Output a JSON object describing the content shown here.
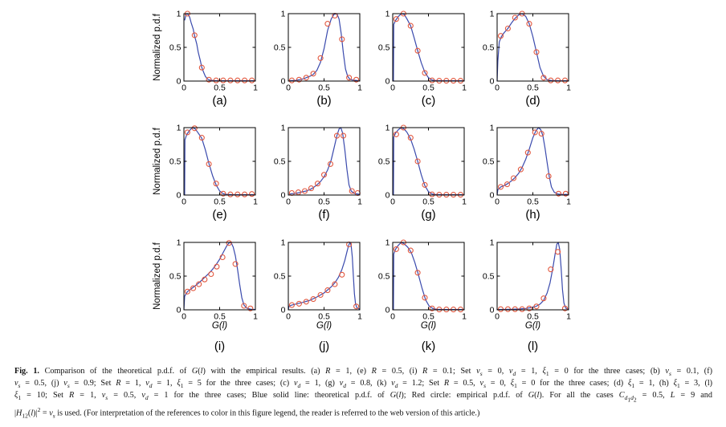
{
  "figure": {
    "ylabel": "Normalized p.d.f",
    "xlabel_html": "<i>G</i>(<i>l</i>)",
    "colors": {
      "line": "#3a4aad",
      "marker": "#e2583f",
      "axis": "#000000"
    },
    "axis": {
      "xlim": [
        0,
        1
      ],
      "ylim": [
        0,
        1
      ],
      "xticks": [
        0,
        0.5,
        1
      ],
      "yticks": [
        0,
        0.5,
        1
      ],
      "xtick_labels": [
        "0",
        "0.5",
        "1"
      ],
      "ytick_labels": [
        "0",
        "0.5",
        "1"
      ]
    },
    "legend": {
      "line": "theoretical p.d.f. of G(l)",
      "marker": "empirical p.d.f. of G(l)"
    }
  },
  "chart_data": [
    {
      "id": "a",
      "label": "(a)",
      "type": "line+scatter",
      "line": {
        "x": [
          0.01,
          0.03,
          0.05,
          0.08,
          0.1,
          0.13,
          0.15,
          0.18,
          0.2,
          0.23,
          0.25,
          0.28,
          0.3,
          0.33,
          0.36,
          0.4,
          0.45,
          0.5,
          0.6,
          0.7,
          0.8,
          0.9,
          1.0
        ],
        "y": [
          0.9,
          0.99,
          1.0,
          0.95,
          0.87,
          0.77,
          0.67,
          0.55,
          0.43,
          0.3,
          0.2,
          0.12,
          0.07,
          0.03,
          0.015,
          0.01,
          0.005,
          0.005,
          0.005,
          0.005,
          0.005,
          0.005,
          0.005
        ]
      },
      "markers": {
        "x": [
          0.05,
          0.15,
          0.25,
          0.35,
          0.45,
          0.55,
          0.65,
          0.75,
          0.85,
          0.95
        ],
        "y": [
          1.0,
          0.68,
          0.2,
          0.02,
          0.01,
          0.01,
          0.01,
          0.01,
          0.01,
          0.01
        ]
      }
    },
    {
      "id": "b",
      "label": "(b)",
      "type": "line+scatter",
      "line": {
        "x": [
          0.01,
          0.05,
          0.1,
          0.15,
          0.2,
          0.25,
          0.3,
          0.35,
          0.4,
          0.45,
          0.5,
          0.55,
          0.6,
          0.64,
          0.68,
          0.71,
          0.74,
          0.77,
          0.8,
          0.83,
          0.86,
          0.9,
          0.95,
          1.0
        ],
        "y": [
          0.005,
          0.007,
          0.01,
          0.02,
          0.03,
          0.05,
          0.07,
          0.1,
          0.16,
          0.28,
          0.48,
          0.75,
          0.92,
          0.99,
          1.0,
          0.92,
          0.7,
          0.42,
          0.18,
          0.07,
          0.03,
          0.015,
          0.01,
          0.005
        ]
      },
      "markers": {
        "x": [
          0.05,
          0.15,
          0.25,
          0.35,
          0.45,
          0.55,
          0.65,
          0.75,
          0.85,
          0.95
        ],
        "y": [
          0.01,
          0.02,
          0.05,
          0.11,
          0.34,
          0.85,
          0.97,
          0.62,
          0.05,
          0.02
        ]
      }
    },
    {
      "id": "c",
      "label": "(c)",
      "type": "line+scatter",
      "line": {
        "x": [
          0.01,
          0.015,
          0.04,
          0.08,
          0.12,
          0.16,
          0.2,
          0.25,
          0.3,
          0.35,
          0.4,
          0.45,
          0.5,
          0.55,
          0.6,
          0.7,
          0.85,
          1.0
        ],
        "y": [
          0.0,
          0.84,
          0.9,
          0.96,
          1.0,
          0.99,
          0.92,
          0.82,
          0.64,
          0.45,
          0.27,
          0.13,
          0.05,
          0.015,
          0.007,
          0.005,
          0.005,
          0.005
        ]
      },
      "markers": {
        "x": [
          0.05,
          0.15,
          0.25,
          0.35,
          0.45,
          0.55,
          0.65,
          0.75,
          0.85,
          0.95
        ],
        "y": [
          0.92,
          1.0,
          0.82,
          0.45,
          0.12,
          0.01,
          0.005,
          0.005,
          0.005,
          0.005
        ]
      }
    },
    {
      "id": "d",
      "label": "(d)",
      "type": "line+scatter",
      "line": {
        "x": [
          0.0,
          0.01,
          0.03,
          0.06,
          0.1,
          0.15,
          0.2,
          0.25,
          0.3,
          0.35,
          0.4,
          0.45,
          0.5,
          0.55,
          0.6,
          0.65,
          0.7,
          0.75,
          0.85,
          1.0
        ],
        "y": [
          0.0,
          0.3,
          0.58,
          0.66,
          0.72,
          0.78,
          0.86,
          0.93,
          0.98,
          1.0,
          0.96,
          0.85,
          0.66,
          0.43,
          0.2,
          0.07,
          0.02,
          0.01,
          0.005,
          0.005
        ]
      },
      "markers": {
        "x": [
          0.05,
          0.15,
          0.25,
          0.35,
          0.45,
          0.55,
          0.65,
          0.75,
          0.85,
          0.95
        ],
        "y": [
          0.67,
          0.78,
          0.94,
          1.0,
          0.85,
          0.43,
          0.05,
          0.01,
          0.01,
          0.01
        ]
      }
    },
    {
      "id": "e",
      "label": "(e)",
      "type": "line+scatter",
      "line": {
        "x": [
          0.01,
          0.015,
          0.04,
          0.08,
          0.12,
          0.16,
          0.2,
          0.25,
          0.3,
          0.35,
          0.4,
          0.45,
          0.5,
          0.55,
          0.6,
          0.7,
          0.85,
          1.0
        ],
        "y": [
          0.0,
          0.82,
          0.9,
          0.96,
          1.0,
          0.98,
          0.92,
          0.84,
          0.67,
          0.47,
          0.29,
          0.15,
          0.06,
          0.02,
          0.01,
          0.005,
          0.005,
          0.005
        ]
      },
      "markers": {
        "x": [
          0.05,
          0.15,
          0.25,
          0.35,
          0.45,
          0.55,
          0.65,
          0.75,
          0.85,
          0.95
        ],
        "y": [
          0.93,
          0.99,
          0.85,
          0.46,
          0.17,
          0.02,
          0.01,
          0.01,
          0.01,
          0.015
        ]
      }
    },
    {
      "id": "f",
      "label": "(f)",
      "type": "line+scatter",
      "line": {
        "x": [
          0.01,
          0.05,
          0.1,
          0.15,
          0.2,
          0.25,
          0.3,
          0.35,
          0.4,
          0.45,
          0.5,
          0.55,
          0.6,
          0.64,
          0.68,
          0.71,
          0.735,
          0.76,
          0.79,
          0.82,
          0.85,
          0.88,
          0.92,
          1.0
        ],
        "y": [
          0.015,
          0.02,
          0.025,
          0.035,
          0.05,
          0.06,
          0.08,
          0.11,
          0.15,
          0.2,
          0.27,
          0.37,
          0.52,
          0.7,
          0.88,
          0.98,
          1.0,
          0.92,
          0.68,
          0.38,
          0.15,
          0.06,
          0.025,
          0.01
        ]
      },
      "markers": {
        "x": [
          0.05,
          0.14,
          0.23,
          0.32,
          0.41,
          0.5,
          0.59,
          0.68,
          0.77,
          0.89,
          0.97
        ],
        "y": [
          0.03,
          0.04,
          0.06,
          0.1,
          0.17,
          0.3,
          0.46,
          0.88,
          0.88,
          0.06,
          0.03
        ]
      }
    },
    {
      "id": "g",
      "label": "(g)",
      "type": "line+scatter",
      "line": {
        "x": [
          0.01,
          0.015,
          0.04,
          0.08,
          0.12,
          0.16,
          0.2,
          0.25,
          0.3,
          0.35,
          0.4,
          0.45,
          0.5,
          0.55,
          0.6,
          0.7,
          0.85,
          1.0
        ],
        "y": [
          0.0,
          0.86,
          0.92,
          0.97,
          1.0,
          0.98,
          0.93,
          0.83,
          0.68,
          0.5,
          0.3,
          0.14,
          0.05,
          0.015,
          0.007,
          0.005,
          0.005,
          0.005
        ]
      },
      "markers": {
        "x": [
          0.05,
          0.15,
          0.25,
          0.35,
          0.45,
          0.55,
          0.65,
          0.75,
          0.85,
          0.95
        ],
        "y": [
          0.9,
          1.0,
          0.85,
          0.5,
          0.15,
          0.01,
          0.005,
          0.005,
          0.005,
          0.005
        ]
      }
    },
    {
      "id": "h",
      "label": "(h)",
      "type": "line+scatter",
      "line": {
        "x": [
          0.0,
          0.01,
          0.05,
          0.1,
          0.15,
          0.2,
          0.25,
          0.3,
          0.35,
          0.4,
          0.45,
          0.5,
          0.54,
          0.58,
          0.61,
          0.64,
          0.67,
          0.7,
          0.73,
          0.76,
          0.8,
          0.85,
          0.9,
          1.0
        ],
        "y": [
          0.0,
          0.08,
          0.12,
          0.14,
          0.17,
          0.21,
          0.26,
          0.32,
          0.41,
          0.53,
          0.68,
          0.85,
          0.95,
          1.0,
          0.97,
          0.88,
          0.7,
          0.48,
          0.27,
          0.12,
          0.04,
          0.015,
          0.01,
          0.01
        ]
      },
      "markers": {
        "x": [
          0.05,
          0.14,
          0.23,
          0.33,
          0.43,
          0.53,
          0.62,
          0.72,
          0.86,
          0.96
        ],
        "y": [
          0.12,
          0.16,
          0.25,
          0.38,
          0.63,
          0.93,
          0.91,
          0.28,
          0.02,
          0.02
        ]
      }
    },
    {
      "id": "i",
      "label": "(i)",
      "type": "line+scatter",
      "line": {
        "x": [
          0.0,
          0.01,
          0.05,
          0.1,
          0.15,
          0.2,
          0.25,
          0.3,
          0.35,
          0.4,
          0.45,
          0.5,
          0.55,
          0.6,
          0.63,
          0.66,
          0.69,
          0.72,
          0.75,
          0.78,
          0.81,
          0.84,
          0.88,
          0.93,
          1.0
        ],
        "y": [
          0.0,
          0.2,
          0.27,
          0.31,
          0.35,
          0.39,
          0.44,
          0.49,
          0.54,
          0.6,
          0.67,
          0.75,
          0.85,
          0.95,
          0.99,
          1.0,
          0.93,
          0.8,
          0.6,
          0.38,
          0.18,
          0.07,
          0.025,
          0.01,
          0.005
        ]
      },
      "markers": {
        "x": [
          0.05,
          0.13,
          0.21,
          0.29,
          0.38,
          0.46,
          0.54,
          0.63,
          0.72,
          0.84,
          0.93
        ],
        "y": [
          0.27,
          0.32,
          0.38,
          0.45,
          0.53,
          0.64,
          0.78,
          0.99,
          0.68,
          0.06,
          0.02
        ]
      }
    },
    {
      "id": "j",
      "label": "(j)",
      "type": "line+scatter",
      "line": {
        "x": [
          0.0,
          0.01,
          0.05,
          0.1,
          0.2,
          0.3,
          0.4,
          0.5,
          0.6,
          0.65,
          0.7,
          0.75,
          0.79,
          0.82,
          0.845,
          0.865,
          0.88,
          0.895,
          0.91,
          0.925,
          0.94,
          0.96,
          1.0
        ],
        "y": [
          0.0,
          0.055,
          0.07,
          0.085,
          0.11,
          0.14,
          0.19,
          0.25,
          0.34,
          0.4,
          0.48,
          0.6,
          0.73,
          0.86,
          0.96,
          1.0,
          0.95,
          0.78,
          0.5,
          0.24,
          0.09,
          0.03,
          0.01
        ]
      },
      "markers": {
        "x": [
          0.05,
          0.15,
          0.25,
          0.35,
          0.45,
          0.55,
          0.65,
          0.75,
          0.85,
          0.95
        ],
        "y": [
          0.07,
          0.09,
          0.12,
          0.16,
          0.22,
          0.29,
          0.38,
          0.52,
          0.97,
          0.05
        ]
      }
    },
    {
      "id": "k",
      "label": "(k)",
      "type": "line+scatter",
      "line": {
        "x": [
          0.01,
          0.015,
          0.04,
          0.08,
          0.12,
          0.16,
          0.21,
          0.26,
          0.31,
          0.36,
          0.41,
          0.46,
          0.51,
          0.56,
          0.61,
          0.7,
          0.85,
          1.0
        ],
        "y": [
          0.0,
          0.83,
          0.9,
          0.96,
          1.0,
          0.98,
          0.93,
          0.85,
          0.7,
          0.52,
          0.32,
          0.15,
          0.055,
          0.02,
          0.008,
          0.005,
          0.005,
          0.005
        ]
      },
      "markers": {
        "x": [
          0.05,
          0.15,
          0.25,
          0.35,
          0.45,
          0.55,
          0.65,
          0.75,
          0.85,
          0.95
        ],
        "y": [
          0.9,
          1.0,
          0.88,
          0.55,
          0.18,
          0.02,
          0.005,
          0.005,
          0.005,
          0.005
        ]
      }
    },
    {
      "id": "l",
      "label": "(l)",
      "type": "line+scatter",
      "line": {
        "x": [
          0.0,
          0.1,
          0.2,
          0.3,
          0.4,
          0.48,
          0.55,
          0.6,
          0.65,
          0.7,
          0.74,
          0.78,
          0.81,
          0.835,
          0.855,
          0.875,
          0.895,
          0.915,
          0.935,
          0.96,
          1.0
        ],
        "y": [
          0.005,
          0.006,
          0.008,
          0.012,
          0.02,
          0.035,
          0.055,
          0.085,
          0.14,
          0.25,
          0.4,
          0.62,
          0.82,
          0.97,
          1.0,
          0.9,
          0.62,
          0.3,
          0.1,
          0.025,
          0.01
        ]
      },
      "markers": {
        "x": [
          0.05,
          0.15,
          0.25,
          0.35,
          0.45,
          0.55,
          0.65,
          0.75,
          0.85,
          0.95
        ],
        "y": [
          0.01,
          0.01,
          0.01,
          0.01,
          0.02,
          0.05,
          0.17,
          0.6,
          0.86,
          0.02
        ]
      }
    }
  ],
  "caption": {
    "lines_html": [
      "<b>Fig. 1.</b> Comparison of the theoretical p.d.f. of <i>G</i>(<i>l</i>) with the empirical results. (a) <i>R</i> = 1, (e) <i>R</i> = 0.5, (i) <i>R</i> = 0.1; Set <i>v</i><sub><i>s</i></sub> = 0, <i>v</i><sub><i>d</i></sub> = 1, <i>&#958;</i><sub>1</sub> = 0 for the three cases; (b) <i>v</i><sub><i>s</i></sub> = 0.1, (f)",
      "<i>v</i><sub><i>s</i></sub> = 0.5, (j) <i>v</i><sub><i>s</i></sub> = 0.9; Set <i>R</i> = 1, <i>v</i><sub><i>d</i></sub> = 1, <i>&#958;</i><sub>1</sub> = 5 for the three cases; (c) <i>v</i><sub><i>d</i></sub> = 1, (g) <i>v</i><sub><i>d</i></sub> = 0.8, (k) <i>v</i><sub><i>d</i></sub> = 1.2; Set <i>R</i> = 0.5, <i>v</i><sub><i>s</i></sub> = 0, <i>&#958;</i><sub>1</sub> = 0 for the three cases; (d) <i>&#958;</i><sub>1</sub> = 1, (h) <i>&#958;</i><sub>1</sub> = 3, (l)",
      "<i>&#958;</i><sub>1</sub> = 10; Set <i>R</i> = 1, <i>v</i><sub><i>s</i></sub> = 0.5, <i>v</i><sub><i>d</i></sub> = 1 for the three cases; Blue solid line: theoretical p.d.f. of <i>G</i>(<i>l</i>); Red circle: empirical p.d.f. of <i>G</i>(<i>l</i>). For all the cases <i>C</i><sub><i>d</i><sub>1</sub><i>d</i><sub>2</sub></sub> = 0.5, <i>L</i> = 9 and",
      "|<i>H</i><sub>12</sub>(<i>l</i>)|<sup>2</sup> = <i>v</i><sub><i>s</i></sub> is used. (For interpretation of the references to color in this figure legend, the reader is referred to the web version of this article.)"
    ]
  }
}
